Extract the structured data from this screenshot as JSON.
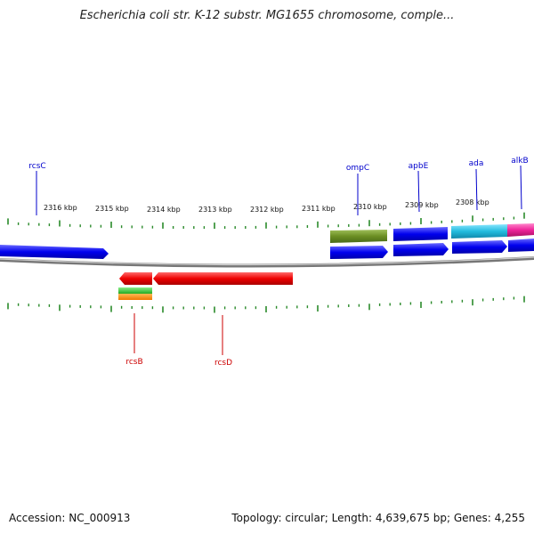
{
  "title": "Escherichia coli str. K-12 substr. MG1655 chromosome, comple...",
  "footer": {
    "accession": "Accession: NC_000913",
    "summary": "Topology: circular; Length: 4,639,675 bp; Genes: 4,255"
  },
  "scale_labels": [
    "2316 kbp",
    "2315 kbp",
    "2314 kbp",
    "2313 kbp",
    "2312 kbp",
    "2311 kbp",
    "2310 kbp",
    "2309 kbp",
    "2308 kbp"
  ],
  "gene_labels": {
    "top": [
      "rcsC",
      "ompC",
      "apbE",
      "ada",
      "alkB"
    ],
    "bottom": [
      "rcsB",
      "rcsD"
    ]
  },
  "colors": {
    "forward_label": "#0000cc",
    "reverse_label": "#cc0000",
    "tick": "#2a8a2a",
    "backbone": "#888888",
    "blue_feature": "#0000ee",
    "red_feature": "#ee0000",
    "olive_feature": "#6b8e23",
    "cyan_feature": "#22bbdd",
    "magenta_feature": "#ee2299",
    "green_feature": "#33bb33",
    "orange_feature": "#ff8800"
  }
}
